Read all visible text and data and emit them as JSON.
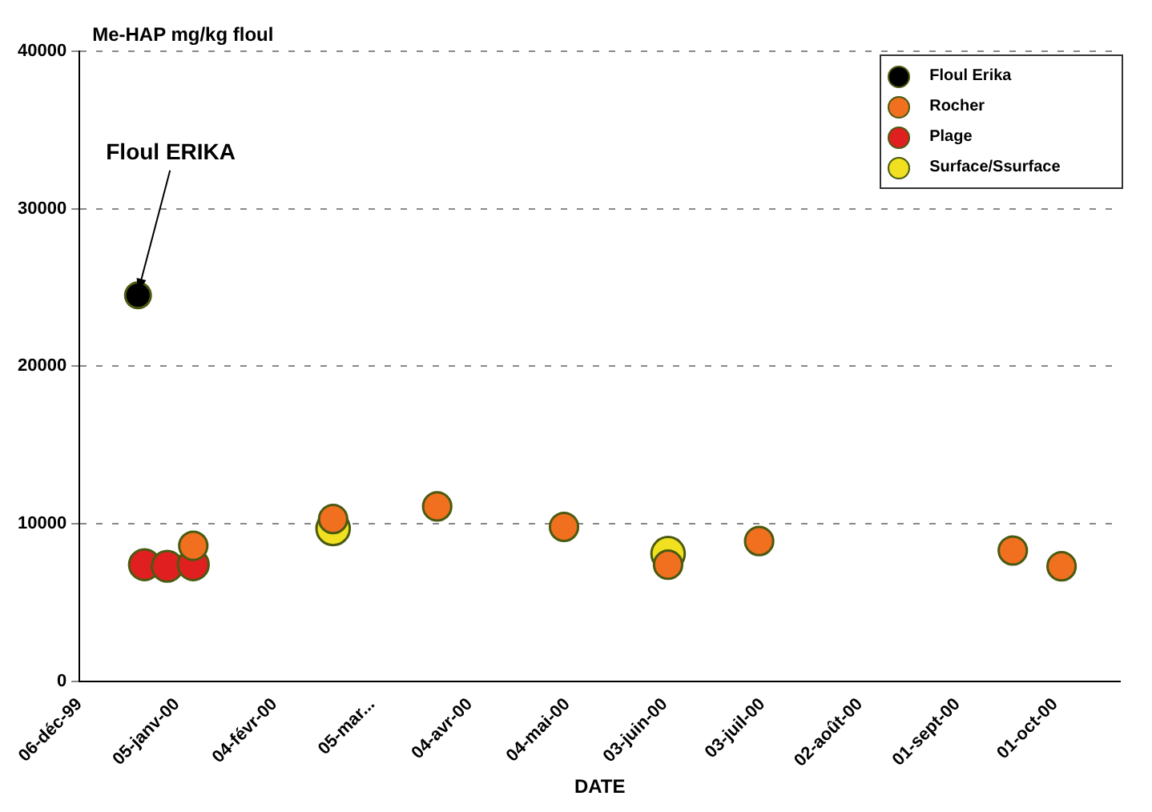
{
  "chart_data": {
    "type": "scatter",
    "ylabel": "Me-HAP mg/kg floul",
    "xlabel": "DATE",
    "annotations": [
      {
        "text": "Floul ERIKA",
        "x": "1999-12-24",
        "y": 24500
      }
    ],
    "series": [
      {
        "name": "Floul Erika",
        "color": "#000000",
        "x": [
          "1999-12-24"
        ],
        "values": [
          24500
        ]
      },
      {
        "name": "Rocher",
        "color": "#f07020",
        "x": [
          "2000-01-10",
          "2000-02-22",
          "2000-03-25",
          "2000-05-03",
          "2000-06-04",
          "2000-07-02",
          "2000-09-18",
          "2000-10-03"
        ],
        "values": [
          8600,
          10300,
          11100,
          9800,
          7400,
          8900,
          8300,
          7300
        ]
      },
      {
        "name": "Plage",
        "color": "#e02020",
        "x": [
          "1999-12-26",
          "2000-01-02",
          "2000-01-10"
        ],
        "values": [
          7400,
          7300,
          7400
        ]
      },
      {
        "name": "Surface/Ssurface",
        "color": "#f0e020",
        "x": [
          "2000-02-22",
          "2000-06-04"
        ],
        "values": [
          9700,
          8100
        ]
      }
    ],
    "xlim": [
      "1999-12-06",
      "2000-10-21"
    ],
    "xticks": [
      {
        "value": "1999-12-06",
        "label": "06-déc-99"
      },
      {
        "value": "2000-01-05",
        "label": "05-janv-00"
      },
      {
        "value": "2000-02-04",
        "label": "04-févr-00"
      },
      {
        "value": "2000-03-05",
        "label": "05-mar..."
      },
      {
        "value": "2000-04-04",
        "label": "04-avr-00"
      },
      {
        "value": "2000-05-04",
        "label": "04-mai-00"
      },
      {
        "value": "2000-06-03",
        "label": "03-juin-00"
      },
      {
        "value": "2000-07-03",
        "label": "03-juil-00"
      },
      {
        "value": "2000-08-02",
        "label": "02-août-00"
      },
      {
        "value": "2000-09-01",
        "label": "01-sept-00"
      },
      {
        "value": "2000-10-01",
        "label": "01-oct-00"
      }
    ],
    "ylim": [
      0,
      40000
    ],
    "yticks": [
      0,
      10000,
      20000,
      30000,
      40000
    ],
    "grid": "y",
    "legend": "top right",
    "marker": "circle"
  }
}
